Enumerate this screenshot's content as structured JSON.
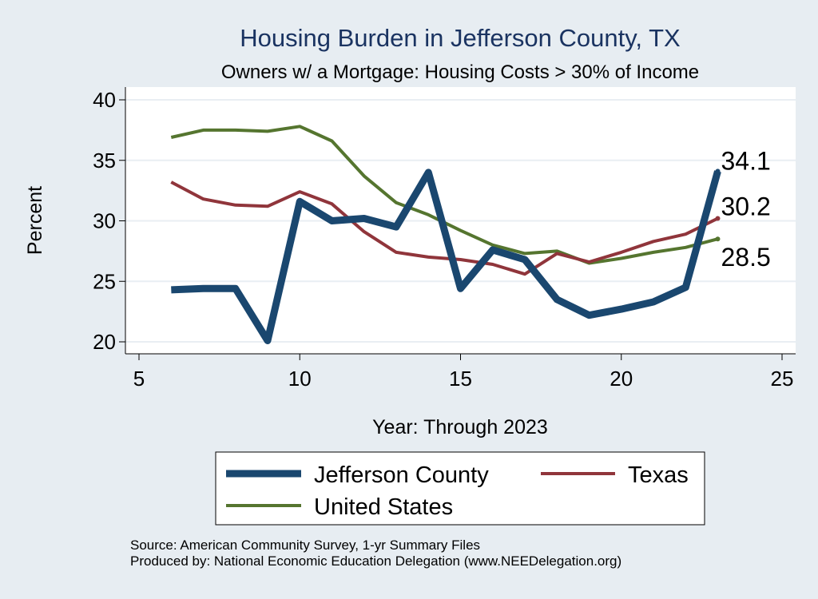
{
  "chart_data": {
    "type": "line",
    "title": "Housing Burden in Jefferson County, TX",
    "subtitle": "Owners w/ a Mortgage: Housing Costs > 30% of Income",
    "xlabel": "Year: Through 2023",
    "ylabel": "Percent",
    "xlim": [
      5,
      25
    ],
    "ylim": [
      20,
      40
    ],
    "x_ticks": [
      5,
      10,
      15,
      20,
      25
    ],
    "y_ticks": [
      20,
      25,
      30,
      35,
      40
    ],
    "grid": true,
    "legend_position": "bottom",
    "series": [
      {
        "name": "Jefferson County",
        "color": "#1a476f",
        "line_style": "thick",
        "end_label": "34.1",
        "x": [
          6,
          7,
          8,
          9,
          10,
          11,
          12,
          13,
          14,
          15,
          16,
          17,
          18,
          19,
          20,
          21,
          22,
          23
        ],
        "values": [
          24.3,
          24.4,
          24.4,
          20.1,
          31.6,
          30.0,
          30.2,
          29.5,
          34.0,
          24.4,
          27.6,
          26.8,
          23.5,
          22.2,
          22.7,
          23.3,
          24.5,
          34.1
        ]
      },
      {
        "name": "Texas",
        "color": "#90353b",
        "line_style": "medium",
        "end_label": "30.2",
        "x": [
          6,
          7,
          8,
          9,
          10,
          11,
          12,
          13,
          14,
          15,
          16,
          17,
          18,
          19,
          20,
          21,
          22,
          23
        ],
        "values": [
          33.2,
          31.8,
          31.3,
          31.2,
          32.4,
          31.4,
          29.1,
          27.4,
          27.0,
          26.8,
          26.4,
          25.6,
          27.3,
          26.6,
          27.4,
          28.3,
          28.9,
          30.2
        ]
      },
      {
        "name": "United States",
        "color": "#55752f",
        "line_style": "medium",
        "end_label": "28.5",
        "x": [
          6,
          7,
          8,
          9,
          10,
          11,
          12,
          13,
          14,
          15,
          16,
          17,
          18,
          19,
          20,
          21,
          22,
          23
        ],
        "values": [
          36.9,
          37.5,
          37.5,
          37.4,
          37.8,
          36.6,
          33.7,
          31.5,
          30.5,
          29.2,
          28.0,
          27.3,
          27.5,
          26.5,
          26.9,
          27.4,
          27.8,
          28.5
        ]
      }
    ],
    "notes": [
      "Source: American Community Survey, 1-yr Summary Files",
      "Produced by: National Economic Education Delegation (www.NEEDelegation.org)"
    ]
  }
}
